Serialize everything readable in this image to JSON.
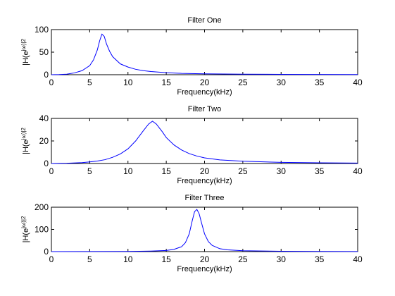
{
  "chart_data": [
    {
      "type": "line",
      "title": "Filter One",
      "xlabel": "Frequency(kHz)",
      "ylabel": "|H(e^jω)|^2",
      "xlim": [
        0,
        40
      ],
      "ylim": [
        0,
        100
      ],
      "xticks": [
        0,
        5,
        10,
        15,
        20,
        25,
        30,
        35,
        40
      ],
      "yticks": [
        0,
        50,
        100
      ],
      "grid": false,
      "series": [
        {
          "color": "#0000ff",
          "x": [
            0,
            1,
            2,
            3,
            4,
            5,
            5.5,
            6,
            6.3,
            6.6,
            6.9,
            7.2,
            7.6,
            8,
            9,
            10,
            11,
            12,
            13,
            15,
            17,
            20,
            25,
            30,
            35,
            40
          ],
          "y": [
            0,
            0.3,
            1.2,
            4,
            9,
            20,
            33,
            55,
            75,
            90,
            85,
            68,
            52,
            40,
            24,
            17,
            12,
            9,
            7,
            4.5,
            3,
            2,
            1.2,
            0.8,
            0.5,
            0.3
          ]
        }
      ]
    },
    {
      "type": "line",
      "title": "Filter Two",
      "xlabel": "Frequency(kHz)",
      "ylabel": "|H(e^jω)|^2",
      "xlim": [
        0,
        40
      ],
      "ylim": [
        0,
        40
      ],
      "xticks": [
        0,
        5,
        10,
        15,
        20,
        25,
        30,
        35,
        40
      ],
      "yticks": [
        0,
        20,
        40
      ],
      "grid": false,
      "series": [
        {
          "color": "#0000ff",
          "x": [
            0,
            2,
            4,
            5,
            6,
            7,
            8,
            9,
            10,
            11,
            12,
            12.7,
            13.2,
            13.7,
            14.5,
            15,
            16,
            17,
            18,
            19,
            20,
            22,
            25,
            30,
            35,
            40
          ],
          "y": [
            0,
            0.2,
            0.8,
            1.4,
            2.2,
            3.4,
            5.5,
            8.5,
            13,
            20,
            29,
            35,
            37.5,
            35,
            28,
            23,
            16.5,
            12,
            8.8,
            6.6,
            5,
            3.2,
            2,
            1,
            0.6,
            0.4
          ]
        }
      ]
    },
    {
      "type": "line",
      "title": "Filter Three",
      "xlabel": "Frequency(kHz)",
      "ylabel": "|H(e^jω)|^2",
      "xlim": [
        0,
        40
      ],
      "ylim": [
        0,
        200
      ],
      "xticks": [
        0,
        5,
        10,
        15,
        20,
        25,
        30,
        35,
        40
      ],
      "yticks": [
        0,
        100,
        200
      ],
      "grid": false,
      "series": [
        {
          "color": "#0000ff",
          "x": [
            0,
            5,
            10,
            13,
            15,
            16,
            17,
            17.5,
            18,
            18.4,
            18.7,
            19,
            19.3,
            19.6,
            20,
            20.5,
            21,
            22,
            23,
            25,
            30,
            35,
            40
          ],
          "y": [
            0,
            0.3,
            1,
            2.5,
            5,
            10,
            22,
            40,
            80,
            140,
            180,
            190,
            170,
            130,
            80,
            45,
            28,
            13,
            8,
            4,
            1.5,
            0.8,
            0.5
          ]
        }
      ]
    }
  ]
}
